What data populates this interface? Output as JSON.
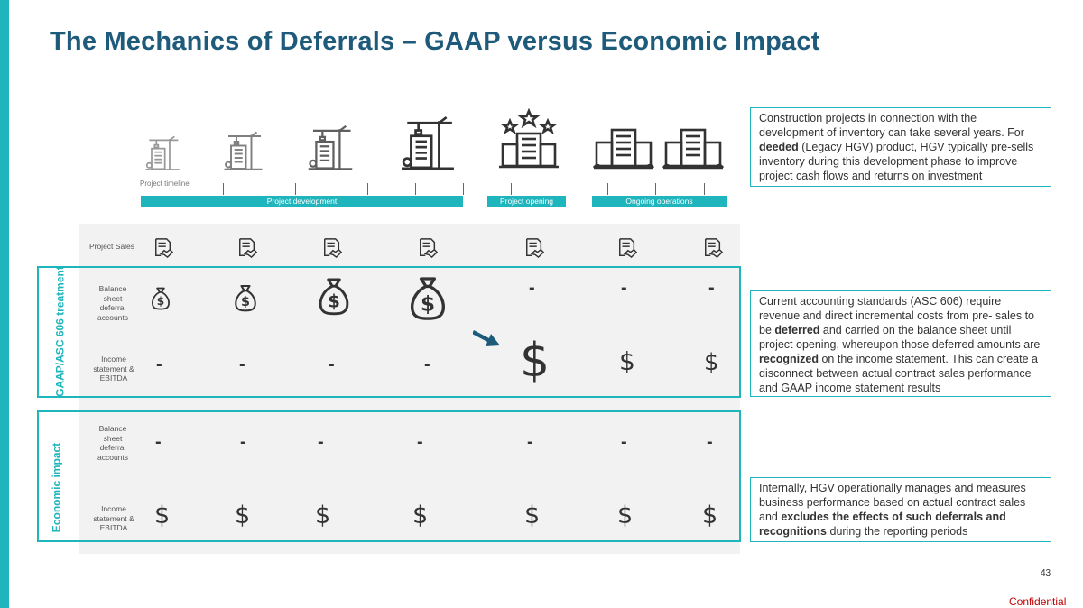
{
  "title": "The Mechanics of Deferrals – GAAP versus Economic Impact",
  "timeline": {
    "label": "Project timeline",
    "phases": [
      "Project development",
      "Project opening",
      "Ongoing operations"
    ]
  },
  "rows": {
    "project_sales": "Project Sales",
    "gaap_balance": "Balance sheet deferral accounts",
    "gaap_income": "Income statement & EBITDA",
    "econ_balance": "Balance sheet deferral accounts",
    "econ_income": "Income statement & EBITDA"
  },
  "groups": {
    "gaap": "GAAP/ASC 606 treatment",
    "economic": "Economic impact"
  },
  "symbols": {
    "dash": "-",
    "dollar": "$"
  },
  "notes": {
    "note1": {
      "p1": "Construction projects in connection with the development of inventory can take several years. For ",
      "b1": "deeded",
      "p2": " (Legacy HGV) product, HGV typically pre-sells inventory during this development phase to improve project cash flows and returns on investment"
    },
    "note2": {
      "p1": "Current accounting standards (ASC 606) require revenue and direct incremental costs from pre- sales to be ",
      "b1": "deferred",
      "p2": " and carried on the balance sheet until project opening, whereupon those deferred amounts are ",
      "b2": "recognized",
      "p3": " on the income statement. This can create a disconnect between actual contract sales performance and GAAP income statement results"
    },
    "note3": {
      "p1": "Internally, HGV operationally manages and measures business performance based on actual contract sales and ",
      "b1": "excludes the effects of such deferrals and recognitions",
      "p2": " during the reporting periods"
    }
  },
  "page_number": "43",
  "confidential": "Confidential",
  "colors": {
    "accent": "#1fb5bd",
    "title": "#1e5a7a",
    "arrow": "#1e5a7a",
    "confidential": "#c00000"
  },
  "icons": [
    "crane-building-icon",
    "stars-building-icon",
    "buildings-icon",
    "contract-handshake-icon",
    "money-bag-icon",
    "arrow-icon"
  ]
}
